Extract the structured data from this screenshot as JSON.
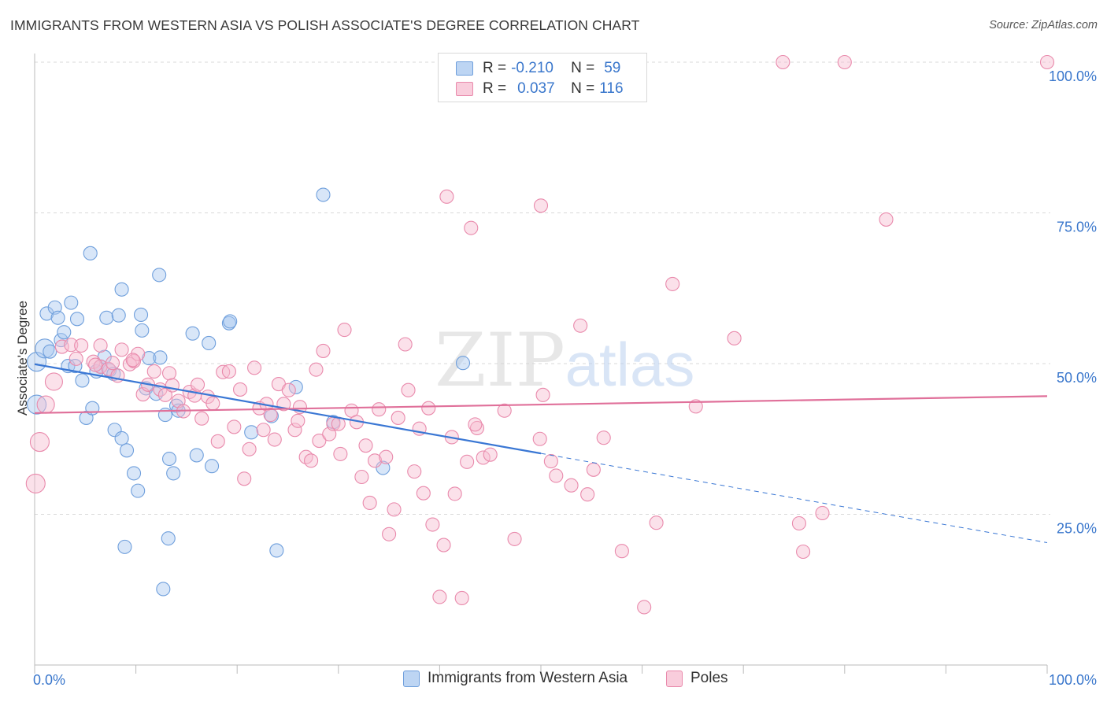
{
  "title": "IMMIGRANTS FROM WESTERN ASIA VS POLISH ASSOCIATE'S DEGREE CORRELATION CHART",
  "source": "Source: ZipAtlas.com",
  "watermark": {
    "zip": "ZIP",
    "atlas": "atlas"
  },
  "legend": {
    "r_label": "R =",
    "n_label": "N =",
    "rows": [
      {
        "r": "-0.210",
        "n": "59"
      },
      {
        "r": "0.037",
        "n": "116"
      }
    ]
  },
  "colors": {
    "blue_fill": "#a9c8f0",
    "blue_stroke": "#6f9fdc",
    "blue_line": "#3a77d4",
    "pink_fill": "#f6bdd0",
    "pink_stroke": "#e98aac",
    "pink_line": "#e0709a",
    "tick_label": "#3a77cc",
    "grid": "#d9d9d9"
  },
  "chart_data": {
    "type": "scatter",
    "title": "IMMIGRANTS FROM WESTERN ASIA VS POLISH ASSOCIATE'S DEGREE CORRELATION CHART",
    "xlabel": "",
    "ylabel": "Associate's Degree",
    "xlim": [
      0,
      100
    ],
    "ylim": [
      0,
      100
    ],
    "x_tick_labels": [
      "0.0%",
      "100.0%"
    ],
    "y_ticks": [
      25,
      50,
      75,
      100
    ],
    "y_tick_labels": [
      "25.0%",
      "50.0%",
      "75.0%",
      "100.0%"
    ],
    "grid": "horizontal dashed",
    "legend_position": "top-center",
    "series": [
      {
        "name": "Immigrants from Western Asia",
        "color": "#6f9fdc",
        "r": -0.21,
        "n": 59,
        "trend": {
          "x": [
            0,
            50
          ],
          "y": [
            49.9,
            35.1
          ],
          "dashed_to": [
            100,
            20.3
          ]
        },
        "points": [
          [
            0.2,
            50.3
          ],
          [
            0.2,
            43.2
          ],
          [
            1.0,
            52.5
          ],
          [
            1.2,
            58.3
          ],
          [
            1.5,
            52.0
          ],
          [
            2.0,
            59.3
          ],
          [
            2.3,
            57.6
          ],
          [
            2.6,
            53.9
          ],
          [
            2.9,
            55.2
          ],
          [
            3.3,
            49.6
          ],
          [
            3.6,
            60.1
          ],
          [
            4.2,
            57.4
          ],
          [
            4.7,
            47.2
          ],
          [
            5.1,
            41.0
          ],
          [
            5.7,
            42.6
          ],
          [
            6.1,
            48.7
          ],
          [
            6.5,
            49.5
          ],
          [
            6.9,
            51.1
          ],
          [
            7.1,
            57.6
          ],
          [
            7.4,
            48.9
          ],
          [
            7.8,
            48.3
          ],
          [
            7.9,
            39.0
          ],
          [
            8.3,
            58.0
          ],
          [
            8.6,
            37.6
          ],
          [
            8.6,
            62.3
          ],
          [
            8.9,
            19.6
          ],
          [
            9.1,
            35.6
          ],
          [
            9.8,
            31.8
          ],
          [
            10.2,
            28.9
          ],
          [
            10.5,
            58.1
          ],
          [
            10.6,
            55.5
          ],
          [
            11.3,
            50.9
          ],
          [
            11.0,
            45.9
          ],
          [
            12.0,
            45.0
          ],
          [
            12.3,
            64.7
          ],
          [
            12.9,
            41.5
          ],
          [
            12.7,
            12.6
          ],
          [
            13.2,
            21.0
          ],
          [
            13.3,
            34.2
          ],
          [
            13.7,
            31.8
          ],
          [
            14.0,
            43.0
          ],
          [
            14.2,
            42.2
          ],
          [
            15.6,
            55.0
          ],
          [
            16.0,
            34.8
          ],
          [
            17.2,
            53.4
          ],
          [
            17.5,
            33.0
          ],
          [
            19.2,
            56.7
          ],
          [
            19.3,
            57.0
          ],
          [
            21.4,
            38.6
          ],
          [
            23.4,
            41.3
          ],
          [
            23.9,
            19.0
          ],
          [
            25.8,
            46.1
          ],
          [
            28.5,
            78.0
          ],
          [
            29.5,
            40.3
          ],
          [
            34.4,
            32.7
          ],
          [
            42.3,
            50.1
          ],
          [
            5.5,
            68.3
          ],
          [
            12.4,
            51.0
          ],
          [
            4.0,
            49.6
          ]
        ]
      },
      {
        "name": "Poles",
        "color": "#e98aac",
        "r": 0.037,
        "n": 116,
        "trend": {
          "x": [
            0,
            100
          ],
          "y": [
            41.8,
            44.6
          ]
        },
        "points": [
          [
            0.1,
            30.1
          ],
          [
            0.5,
            37.0
          ],
          [
            1.1,
            43.2
          ],
          [
            1.9,
            47.0
          ],
          [
            2.7,
            52.8
          ],
          [
            3.6,
            53.1
          ],
          [
            4.1,
            50.8
          ],
          [
            4.6,
            53.0
          ],
          [
            5.8,
            50.3
          ],
          [
            6.5,
            49.5
          ],
          [
            7.3,
            49.1
          ],
          [
            7.7,
            50.1
          ],
          [
            8.2,
            48.0
          ],
          [
            8.6,
            52.3
          ],
          [
            9.4,
            49.9
          ],
          [
            9.8,
            50.4
          ],
          [
            10.2,
            51.6
          ],
          [
            10.7,
            44.9
          ],
          [
            11.2,
            46.5
          ],
          [
            11.8,
            48.7
          ],
          [
            12.4,
            45.7
          ],
          [
            12.9,
            44.8
          ],
          [
            13.3,
            48.4
          ],
          [
            13.6,
            46.4
          ],
          [
            14.2,
            43.8
          ],
          [
            14.7,
            42.1
          ],
          [
            15.3,
            45.3
          ],
          [
            15.8,
            44.7
          ],
          [
            16.1,
            46.5
          ],
          [
            16.5,
            40.9
          ],
          [
            17.1,
            44.5
          ],
          [
            17.6,
            43.4
          ],
          [
            18.1,
            37.1
          ],
          [
            18.6,
            48.6
          ],
          [
            19.2,
            48.7
          ],
          [
            19.7,
            39.5
          ],
          [
            20.3,
            45.7
          ],
          [
            20.7,
            30.9
          ],
          [
            21.2,
            35.8
          ],
          [
            21.7,
            49.3
          ],
          [
            22.2,
            42.6
          ],
          [
            22.6,
            39.0
          ],
          [
            22.9,
            43.3
          ],
          [
            23.3,
            41.5
          ],
          [
            23.7,
            37.4
          ],
          [
            24.1,
            46.6
          ],
          [
            24.6,
            43.3
          ],
          [
            25.1,
            45.6
          ],
          [
            25.7,
            39.0
          ],
          [
            26.2,
            42.8
          ],
          [
            26.8,
            34.5
          ],
          [
            27.3,
            33.9
          ],
          [
            27.8,
            49.0
          ],
          [
            28.1,
            37.2
          ],
          [
            28.5,
            52.1
          ],
          [
            29.1,
            38.3
          ],
          [
            29.5,
            40.0
          ],
          [
            30.2,
            35.0
          ],
          [
            30.6,
            55.6
          ],
          [
            31.3,
            42.2
          ],
          [
            31.8,
            40.3
          ],
          [
            32.3,
            31.2
          ],
          [
            32.7,
            36.4
          ],
          [
            33.1,
            26.9
          ],
          [
            33.6,
            33.9
          ],
          [
            34.0,
            42.4
          ],
          [
            34.7,
            34.5
          ],
          [
            35.0,
            21.7
          ],
          [
            35.5,
            25.8
          ],
          [
            35.9,
            41.0
          ],
          [
            36.6,
            53.2
          ],
          [
            36.9,
            45.6
          ],
          [
            37.5,
            32.1
          ],
          [
            38.0,
            39.2
          ],
          [
            38.4,
            28.5
          ],
          [
            38.9,
            42.6
          ],
          [
            39.3,
            23.3
          ],
          [
            40.0,
            11.3
          ],
          [
            40.4,
            19.9
          ],
          [
            40.7,
            77.7
          ],
          [
            41.2,
            37.8
          ],
          [
            41.5,
            28.4
          ],
          [
            42.2,
            11.1
          ],
          [
            42.7,
            33.7
          ],
          [
            43.1,
            72.5
          ],
          [
            43.7,
            39.3
          ],
          [
            44.3,
            34.4
          ],
          [
            45.0,
            34.9
          ],
          [
            46.4,
            42.2
          ],
          [
            47.4,
            20.9
          ],
          [
            49.9,
            37.5
          ],
          [
            50.0,
            76.2
          ],
          [
            50.2,
            44.8
          ],
          [
            51.0,
            33.8
          ],
          [
            51.5,
            31.4
          ],
          [
            53.0,
            29.8
          ],
          [
            53.9,
            56.3
          ],
          [
            54.6,
            28.3
          ],
          [
            55.2,
            32.4
          ],
          [
            56.2,
            37.7
          ],
          [
            58.0,
            18.9
          ],
          [
            60.2,
            9.6
          ],
          [
            61.4,
            23.6
          ],
          [
            63.0,
            63.2
          ],
          [
            65.3,
            42.9
          ],
          [
            69.1,
            54.2
          ],
          [
            75.5,
            23.5
          ],
          [
            75.9,
            18.8
          ],
          [
            77.8,
            25.2
          ],
          [
            73.9,
            100.0
          ],
          [
            80.0,
            100.0
          ],
          [
            84.1,
            73.9
          ],
          [
            100.0,
            100.0
          ],
          [
            6.5,
            53.0
          ],
          [
            9.7,
            50.6
          ],
          [
            6.0,
            49.8
          ],
          [
            26.0,
            40.5
          ],
          [
            43.5,
            39.9
          ],
          [
            30.0,
            40.0
          ]
        ]
      }
    ]
  },
  "bottom_legend": [
    "Immigrants from Western Asia",
    "Poles"
  ]
}
